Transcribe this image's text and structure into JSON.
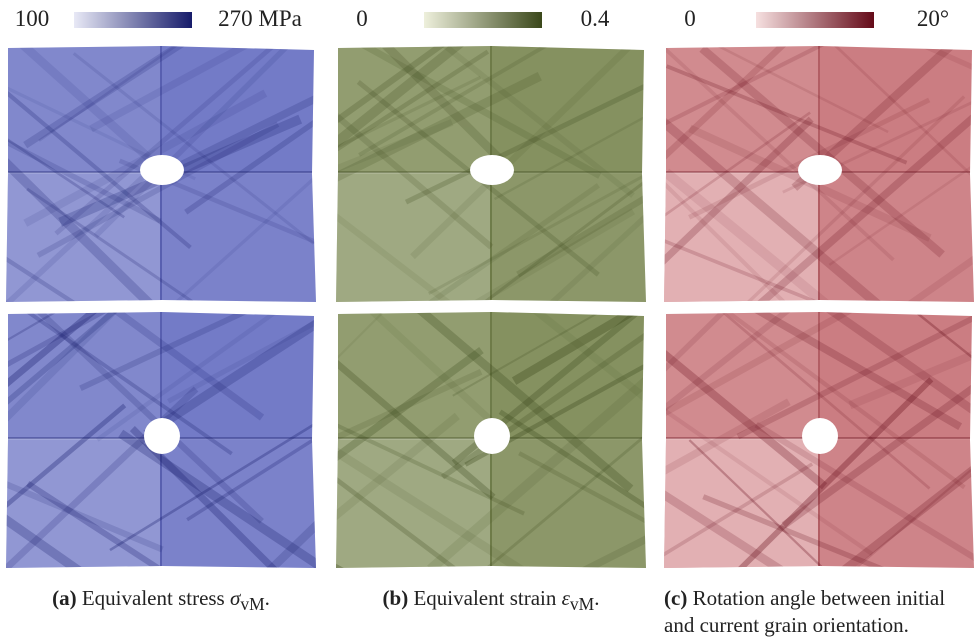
{
  "panels": [
    {
      "colorbar": {
        "min": "100",
        "max": "270 MPa"
      },
      "caption": {
        "label": "(a)",
        "text": "Equivalent stress",
        "symbol": "σ",
        "subscript": "vM",
        "end": "."
      }
    },
    {
      "colorbar": {
        "min": "0",
        "max": "0.4"
      },
      "caption": {
        "label": "(b)",
        "text": "Equivalent strain",
        "symbol": "ε",
        "subscript": "vM",
        "end": "."
      }
    },
    {
      "colorbar": {
        "min": "0",
        "max": "20°"
      },
      "caption": {
        "label": "(c)",
        "text": "Rotation angle between initial and current grain orientation."
      }
    }
  ]
}
